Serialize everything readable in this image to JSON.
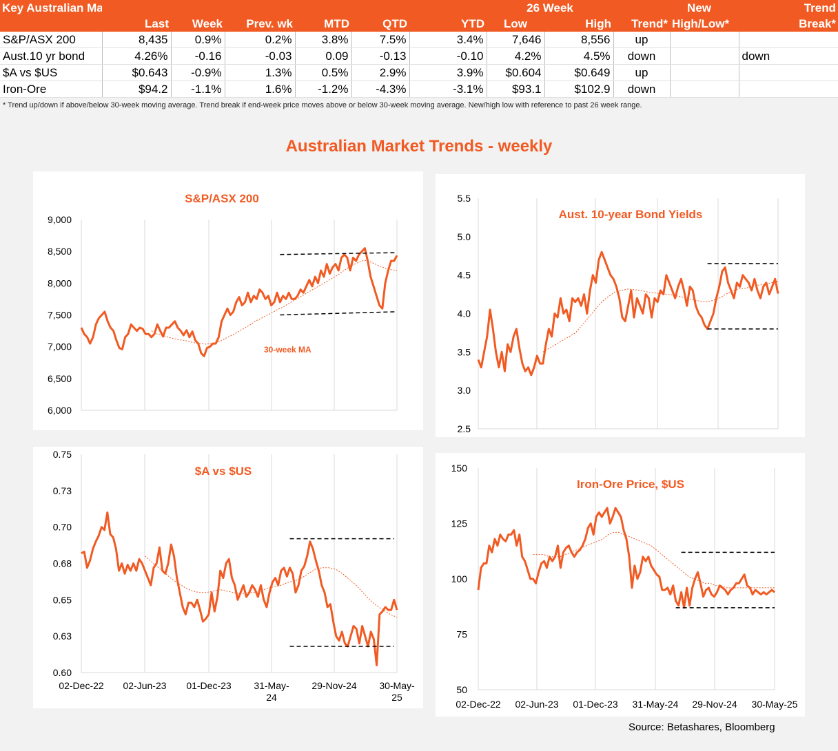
{
  "table": {
    "title": "Key Australian Markets",
    "group_header": "26 Week",
    "headers": [
      "Last",
      "Week",
      "Prev. wk",
      "MTD",
      "QTD",
      "YTD",
      "Low",
      "High",
      "Trend*",
      "New",
      "Trend"
    ],
    "headers2": [
      "High/Low*",
      "Break*"
    ],
    "rows": [
      {
        "name": "S&P/ASX 200",
        "last": "8,435",
        "week": "0.9%",
        "prev": "0.2%",
        "mtd": "3.8%",
        "qtd": "7.5%",
        "ytd": "3.4%",
        "low": "7,646",
        "high": "8,556",
        "trend": "up",
        "newhl": "",
        "brk": ""
      },
      {
        "name": "Aust.10 yr bond",
        "last": "4.26%",
        "week": "-0.16",
        "prev": "-0.03",
        "mtd": "0.09",
        "qtd": "-0.13",
        "ytd": "-0.10",
        "low": "4.2%",
        "high": "4.5%",
        "trend": "down",
        "newhl": "",
        "brk": "down"
      },
      {
        "name": "$A vs $US",
        "last": "$0.643",
        "week": "-0.9%",
        "prev": "1.3%",
        "mtd": "0.5%",
        "qtd": "2.9%",
        "ytd": "3.9%",
        "low": "$0.604",
        "high": "$0.649",
        "trend": "up",
        "newhl": "",
        "brk": ""
      },
      {
        "name": "Iron-Ore",
        "last": "$94.2",
        "week": "-1.1%",
        "prev": "1.6%",
        "mtd": "-1.2%",
        "qtd": "-4.3%",
        "ytd": "-3.1%",
        "low": "$93.1",
        "high": "$102.9",
        "trend": "down",
        "newhl": "",
        "brk": ""
      }
    ],
    "footnote": "*  Trend up/down if above/below 30-week moving average. Trend break if end-week price moves above or below 30-week moving average.  New/high low with reference to past 26 week range."
  },
  "main_title": "Australian Market Trends - weekly",
  "source": "Source:  Betashares, Bloomberg",
  "colors": {
    "accent": "#f15a22",
    "ma": "#f15a22",
    "range": "#000000"
  },
  "chart_data": [
    {
      "id": "asx",
      "type": "line",
      "title": "S&P/ASX 200",
      "annotation": "30-week MA",
      "ylim": [
        6000,
        9000
      ],
      "yticks": [
        "9,000",
        "8,500",
        "8,000",
        "7,500",
        "7,000",
        "6,500",
        "6,000"
      ],
      "xlabels": [],
      "series": [
        {
          "values": [
            7300,
            7200,
            7150,
            7050,
            7150,
            7350,
            7450,
            7500,
            7550,
            7400,
            7300,
            7250,
            7100,
            6980,
            6960,
            7150,
            7200,
            7350,
            7300,
            7250,
            7300,
            7280,
            7200,
            7200,
            7150,
            7200,
            7350,
            7250,
            7160,
            7300,
            7300,
            7350,
            7400,
            7300,
            7250,
            7180,
            7260,
            7150,
            7240,
            7100,
            7050,
            6900,
            6850,
            6980,
            7000,
            7050,
            7050,
            7150,
            7400,
            7500,
            7600,
            7500,
            7550,
            7700,
            7780,
            7650,
            7700,
            7850,
            7700,
            7800,
            7750,
            7900,
            7850,
            7750,
            7800,
            7650,
            7700,
            7850,
            7700,
            7800,
            7750,
            7850,
            7750,
            7750,
            7800,
            7900,
            7850,
            7950,
            8050,
            7950,
            8100,
            8000,
            8200,
            8100,
            8300,
            8150,
            8250,
            8300,
            8200,
            8400,
            8450,
            8400,
            8200,
            8400,
            8350,
            8450,
            8500,
            8550,
            8350,
            8100,
            7950,
            7800,
            7650,
            7600,
            8000,
            8200,
            8350,
            8350,
            8435
          ]
        },
        {
          "name": "30-week MA",
          "values": [
            7250,
            7200,
            7180,
            7150,
            7130,
            7110,
            7100,
            7080,
            7060,
            7050,
            7040,
            7050,
            7070,
            7100,
            7150,
            7190,
            7240,
            7290,
            7340,
            7400,
            7440,
            7490,
            7530,
            7580,
            7620,
            7670,
            7720,
            7770,
            7820,
            7870,
            7920,
            7970,
            8020,
            8070,
            8120,
            8180,
            8240,
            8290,
            8330,
            8360,
            8340,
            8300,
            8260,
            8230,
            8210,
            8200
          ]
        }
      ],
      "ma_start": 24,
      "ranges": [
        {
          "y": 8450,
          "from": 68,
          "to": 108
        },
        {
          "y": 7500,
          "from": 68,
          "to": 108
        }
      ],
      "ranges_y2": [
        8480,
        7550
      ]
    },
    {
      "id": "bond",
      "type": "line",
      "title": "Aust. 10-year Bond Yields",
      "ylim": [
        2.5,
        5.5
      ],
      "yticks": [
        "5.5",
        "5.0",
        "4.5",
        "4.0",
        "3.5",
        "3.0",
        "2.5"
      ],
      "xlabels": [],
      "series": [
        {
          "values": [
            3.4,
            3.3,
            3.5,
            3.7,
            4.05,
            3.8,
            3.5,
            3.3,
            3.5,
            3.25,
            3.6,
            3.5,
            3.7,
            3.8,
            3.55,
            3.35,
            3.25,
            3.3,
            3.2,
            3.3,
            3.45,
            3.35,
            3.35,
            3.6,
            3.8,
            3.7,
            4.0,
            3.95,
            4.2,
            4.0,
            4.05,
            3.9,
            4.2,
            4.15,
            4.2,
            4.1,
            4.25,
            4.0,
            4.3,
            4.5,
            4.4,
            4.7,
            4.8,
            4.7,
            4.6,
            4.5,
            4.45,
            4.35,
            4.2,
            3.95,
            3.9,
            4.1,
            4.3,
            3.95,
            4.2,
            4.1,
            4.0,
            4.25,
            4.2,
            3.95,
            4.2,
            4.15,
            4.3,
            4.25,
            4.5,
            4.4,
            4.3,
            4.2,
            4.35,
            4.45,
            4.3,
            4.1,
            4.35,
            4.3,
            4.1,
            4.0,
            3.95,
            3.85,
            3.8,
            3.9,
            4.0,
            4.2,
            4.35,
            4.55,
            4.6,
            4.4,
            4.3,
            4.2,
            4.4,
            4.35,
            4.5,
            4.45,
            4.4,
            4.3,
            4.45,
            4.3,
            4.2,
            4.35,
            4.4,
            4.25,
            4.35,
            4.45,
            4.26
          ]
        },
        {
          "name": "30-week MA",
          "values": [
            3.5,
            3.55,
            3.6,
            3.65,
            3.7,
            3.75,
            3.85,
            3.95,
            4.05,
            4.15,
            4.22,
            4.28,
            4.3,
            4.32,
            4.31,
            4.3,
            4.28,
            4.27,
            4.26,
            4.25,
            4.24,
            4.22,
            4.2,
            4.18,
            4.16,
            4.15,
            4.17,
            4.2,
            4.25,
            4.3,
            4.32,
            4.33,
            4.35,
            4.37,
            4.38,
            4.4,
            4.42
          ]
        },
        {
          "name": "ma_offset",
          "values": []
        }
      ],
      "ma_start": 22,
      "ranges": [
        {
          "y": 4.65,
          "from": 78,
          "to": 104
        },
        {
          "y": 3.8,
          "from": 78,
          "to": 104
        }
      ]
    },
    {
      "id": "aud",
      "type": "line",
      "title": "$A vs $US",
      "ylim": [
        0.6,
        0.75
      ],
      "yticks": [
        "0.75",
        "0.73",
        "0.70",
        "0.68",
        "0.65",
        "0.63",
        "0.60"
      ],
      "xlabels": [
        "02-Dec-22",
        "02-Jun-23",
        "01-Dec-23",
        "31-May-",
        "29-Nov-24",
        "30-May-"
      ],
      "xlabels2": [
        "",
        "",
        "",
        "24",
        "",
        "25"
      ],
      "series": [
        {
          "values": [
            0.682,
            0.683,
            0.672,
            0.677,
            0.685,
            0.69,
            0.694,
            0.7,
            0.698,
            0.71,
            0.695,
            0.693,
            0.685,
            0.67,
            0.675,
            0.668,
            0.674,
            0.67,
            0.675,
            0.67,
            0.678,
            0.675,
            0.67,
            0.665,
            0.66,
            0.672,
            0.675,
            0.686,
            0.67,
            0.668,
            0.675,
            0.688,
            0.68,
            0.665,
            0.655,
            0.645,
            0.64,
            0.648,
            0.648,
            0.645,
            0.65,
            0.643,
            0.635,
            0.637,
            0.64,
            0.655,
            0.642,
            0.652,
            0.67,
            0.665,
            0.675,
            0.678,
            0.665,
            0.66,
            0.65,
            0.655,
            0.66,
            0.652,
            0.655,
            0.66,
            0.657,
            0.652,
            0.66,
            0.65,
            0.645,
            0.655,
            0.662,
            0.665,
            0.66,
            0.67,
            0.672,
            0.666,
            0.672,
            0.668,
            0.655,
            0.66,
            0.67,
            0.673,
            0.68,
            0.69,
            0.685,
            0.677,
            0.67,
            0.66,
            0.655,
            0.645,
            0.647,
            0.635,
            0.625,
            0.622,
            0.628,
            0.62,
            0.618,
            0.625,
            0.632,
            0.63,
            0.62,
            0.632,
            0.625,
            0.618,
            0.628,
            0.623,
            0.605,
            0.64,
            0.642,
            0.645,
            0.643,
            0.643,
            0.65,
            0.643
          ]
        },
        {
          "name": "30-week MA",
          "values": [
            0.68,
            0.676,
            0.672,
            0.668,
            0.664,
            0.661,
            0.658,
            0.656,
            0.655,
            0.655,
            0.656,
            0.657,
            0.656,
            0.655,
            0.654,
            0.655,
            0.655,
            0.656,
            0.658,
            0.659,
            0.66,
            0.662,
            0.663,
            0.665,
            0.668,
            0.671,
            0.672,
            0.672,
            0.671,
            0.668,
            0.664,
            0.66,
            0.655,
            0.65,
            0.646,
            0.643,
            0.64,
            0.638
          ]
        }
      ],
      "ma_start": 22,
      "ranges": [
        {
          "y": 0.692,
          "from": 72,
          "to": 108
        },
        {
          "y": 0.618,
          "from": 72,
          "to": 108
        }
      ]
    },
    {
      "id": "iron",
      "type": "line",
      "title": "Iron-Ore Price, $US",
      "ylim": [
        50,
        150
      ],
      "yticks": [
        "150",
        "125",
        "100",
        "75",
        "50"
      ],
      "xlabels": [
        "02-Dec-22",
        "02-Jun-23",
        "01-Dec-23",
        "31-May-24",
        "29-Nov-24",
        "30-May-25"
      ],
      "series": [
        {
          "values": [
            95,
            105,
            107,
            107,
            115,
            112,
            118,
            115,
            120,
            118,
            117,
            120,
            120,
            122,
            115,
            120,
            110,
            108,
            104,
            100,
            100,
            98,
            103,
            107,
            108,
            105,
            110,
            108,
            110,
            115,
            105,
            112,
            114,
            115,
            112,
            110,
            112,
            113,
            115,
            118,
            123,
            125,
            120,
            128,
            130,
            128,
            130,
            132,
            125,
            128,
            132,
            130,
            128,
            122,
            118,
            110,
            96,
            106,
            100,
            103,
            110,
            108,
            110,
            106,
            104,
            102,
            101,
            95,
            95,
            96,
            93,
            97,
            90,
            88,
            94,
            87,
            96,
            88,
            96,
            100,
            103,
            98,
            92,
            95,
            96,
            93,
            92,
            94,
            97,
            96,
            95,
            93,
            95,
            96,
            98,
            98,
            100,
            102,
            97,
            96,
            93,
            95,
            94,
            93,
            94,
            93,
            94,
            95,
            94
          ]
        },
        {
          "name": "30-week MA",
          "values": [
            111,
            111,
            111,
            110,
            110,
            110,
            111,
            112,
            113,
            114,
            115,
            116,
            117,
            118,
            120,
            121,
            121,
            120,
            119,
            118,
            117,
            116,
            115,
            113,
            111,
            109,
            107,
            105,
            103,
            101,
            100,
            99,
            98,
            98,
            97,
            97,
            96,
            96,
            96,
            96,
            96,
            96,
            96,
            96,
            96,
            96
          ]
        }
      ],
      "ma_start": 20,
      "ranges": [
        {
          "y": 112,
          "from": 74,
          "to": 108
        },
        {
          "y": 87,
          "from": 72,
          "to": 108
        }
      ]
    }
  ]
}
